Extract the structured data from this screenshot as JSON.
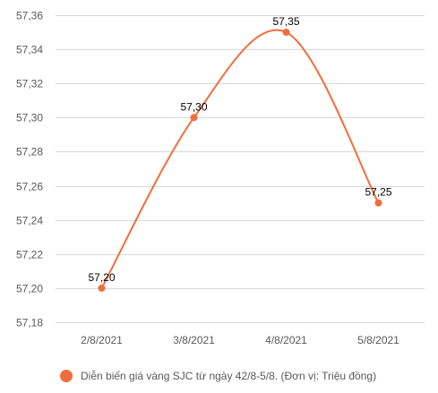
{
  "chart_data": {
    "type": "line",
    "smooth": true,
    "categories": [
      "2/8/2021",
      "3/8/2021",
      "4/8/2021",
      "5/8/2021"
    ],
    "series": [
      {
        "name": "Diễn biến giá vàng SJC từ ngày 42/8-5/8. (Đơn vị: Triệu đồng)",
        "values": [
          57.2,
          57.3,
          57.35,
          57.25
        ],
        "value_labels": [
          "57,20",
          "57,30",
          "57,35",
          "57,25"
        ],
        "color": "#f26d3d"
      }
    ],
    "ylim": [
      57.18,
      57.36
    ],
    "y_ticks": [
      57.18,
      57.2,
      57.22,
      57.24,
      57.26,
      57.28,
      57.3,
      57.32,
      57.34,
      57.36
    ],
    "y_tick_labels": [
      "57,18",
      "57,20",
      "57,22",
      "57,24",
      "57,26",
      "57,28",
      "57,30",
      "57,32",
      "57,34",
      "57,36"
    ],
    "grid": true,
    "legend_position": "bottom",
    "colors": {
      "grid": "#d9d9d9",
      "axis_text": "#595959"
    }
  }
}
